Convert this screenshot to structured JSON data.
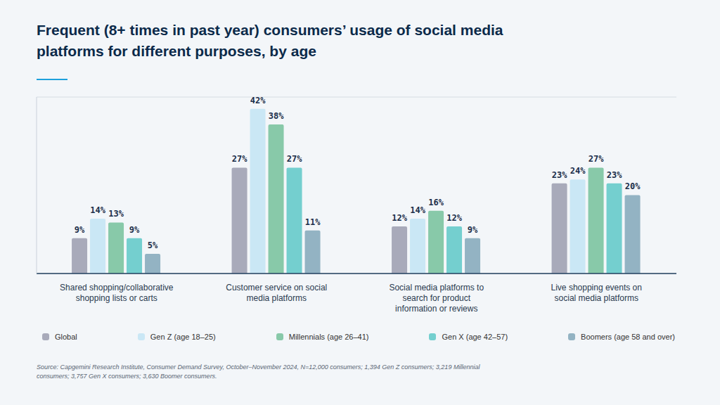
{
  "chart_data": {
    "type": "bar",
    "title": "Frequent (8+ times in past year) consumers’ usage of social media platforms for different purposes, by age",
    "source": "Source: Capgemini Research Institute, Consumer Demand Survey, October–November 2024, N=12,000 consumers; 1,394 Gen Z consumers; 3,219 Millennial consumers; 3,757 Gen X consumers; 3,630 Boomer consumers.",
    "categories": [
      "Shared shopping/collaborative shopping lists or carts",
      "Customer service on social media platforms",
      "Social media platforms to search for product information or reviews",
      "Live shopping events on social media platforms"
    ],
    "series": [
      {
        "name": "Global",
        "color": "#a8aaba",
        "values": [
          9,
          27,
          12,
          23
        ],
        "value_labels": [
          "9%",
          "27%",
          "12%",
          "23%"
        ]
      },
      {
        "name": "Gen Z (age 18–25)",
        "color": "#cae7f5",
        "values": [
          14,
          42,
          14,
          24
        ],
        "value_labels": [
          "14%",
          "42%",
          "14%",
          "24%"
        ]
      },
      {
        "name": "Millennials (age 26–41)",
        "color": "#88c9a9",
        "values": [
          13,
          38,
          16,
          27
        ],
        "value_labels": [
          "13%",
          "38%",
          "16%",
          "27%"
        ]
      },
      {
        "name": "Gen X (age 42–57)",
        "color": "#74cfcf",
        "values": [
          9,
          27,
          12,
          23
        ],
        "value_labels": [
          "9%",
          "27%",
          "12%",
          "23%"
        ]
      },
      {
        "name": "Boomers (age 58 and over)",
        "color": "#93b3c3",
        "values": [
          5,
          11,
          9,
          20
        ],
        "value_labels": [
          "5%",
          "11%",
          "9%",
          "20%"
        ]
      }
    ],
    "ylim": [
      0,
      45
    ],
    "yticks": [
      0,
      10,
      20,
      30,
      40
    ],
    "grid": true,
    "data_labels": true,
    "tick_labels": "x",
    "legend": "bottom"
  }
}
